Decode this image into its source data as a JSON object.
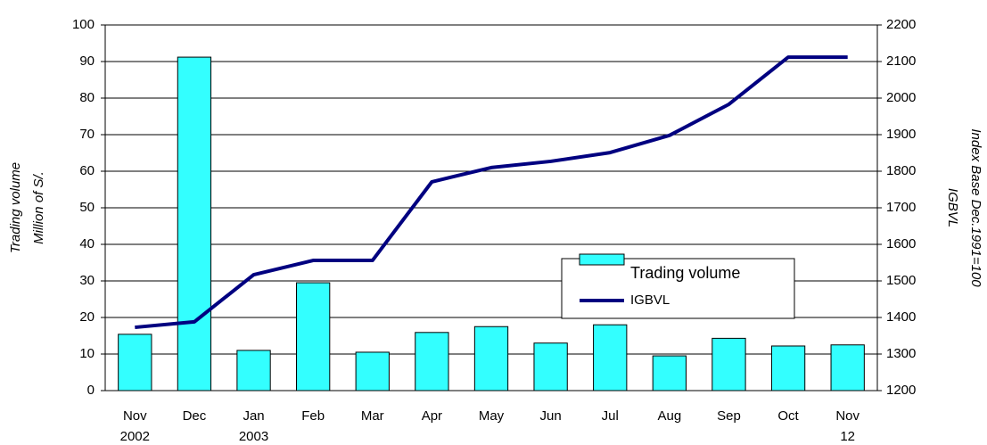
{
  "chart_data": {
    "type": "bar_line",
    "categories": [
      "Nov",
      "Dec",
      "Jan",
      "Feb",
      "Mar",
      "Apr",
      "May",
      "Jun",
      "Jul",
      "Aug",
      "Sep",
      "Oct",
      "Nov"
    ],
    "category_sublabels": [
      "2002",
      null,
      "2003",
      null,
      null,
      null,
      null,
      null,
      null,
      null,
      null,
      null,
      "12"
    ],
    "series": [
      {
        "name": "Trading volume",
        "type": "bar",
        "color": "#33ffff",
        "values": [
          15.4,
          91.2,
          11,
          29.5,
          10.5,
          15.9,
          17.5,
          13,
          18,
          9.5,
          14.3,
          12.2,
          12.5
        ]
      },
      {
        "name": "IGBVL",
        "type": "line",
        "axis": "y2",
        "color": "#000080",
        "values": [
          1373,
          1388,
          1517,
          1556,
          1556,
          1771,
          1810,
          1827,
          1851,
          1898,
          1983,
          2112,
          2112
        ]
      }
    ],
    "y_label": [
      "Trading volume",
      "Million of S/."
    ],
    "y2_label": [
      "Index Base Dec.1991=100",
      "IGBVL"
    ],
    "ylim": [
      0,
      100
    ],
    "yticks": [
      0,
      10,
      20,
      30,
      40,
      50,
      60,
      70,
      80,
      90,
      100
    ],
    "y2lim": [
      1200,
      2200
    ],
    "y2ticks": [
      1200,
      1300,
      1400,
      1500,
      1600,
      1700,
      1800,
      1900,
      2000,
      2100,
      2200
    ],
    "grid": true
  }
}
